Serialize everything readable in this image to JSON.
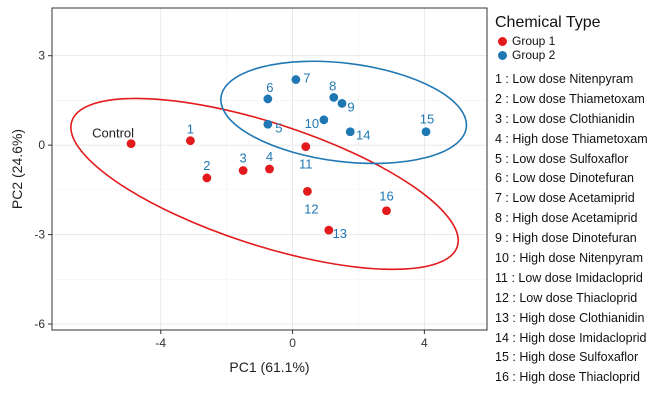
{
  "chart_data": {
    "type": "scatter",
    "xlabel": "PC1 (61.1%)",
    "ylabel": "PC2 (24.6%)",
    "xlim": [
      -7.3,
      5.9
    ],
    "ylim": [
      -6.2,
      4.6
    ],
    "xticks": [
      -4,
      0,
      4
    ],
    "yticks": [
      -6,
      -3,
      0,
      3
    ],
    "xtick_labels": [
      "-4",
      "0",
      "4"
    ],
    "ytick_labels": [
      "-6",
      "-3",
      "0",
      "3"
    ],
    "grid": true,
    "legend_position": "top-right",
    "legend_title": "Chemical Type",
    "series": [
      {
        "name": "Group 1",
        "color": "#e31a1c",
        "points": [
          {
            "label": "Control",
            "x": -4.9,
            "y": 0.05
          },
          {
            "label": "1",
            "x": -3.1,
            "y": 0.15
          },
          {
            "label": "2",
            "x": -2.6,
            "y": -1.1
          },
          {
            "label": "3",
            "x": -1.5,
            "y": -0.85
          },
          {
            "label": "4",
            "x": -0.7,
            "y": -0.8
          },
          {
            "label": "11",
            "x": 0.4,
            "y": -0.05
          },
          {
            "label": "12",
            "x": 0.45,
            "y": -1.55
          },
          {
            "label": "13",
            "x": 1.1,
            "y": -2.85
          },
          {
            "label": "16",
            "x": 2.85,
            "y": -2.2
          }
        ],
        "ellipse": {
          "cx": -0.85,
          "cy": -1.3,
          "rx": 6.15,
          "ry": 2.05,
          "angle_deg": -18
        }
      },
      {
        "name": "Group 2",
        "color": "#1f78b4",
        "points": [
          {
            "label": "5",
            "x": -0.75,
            "y": 0.7
          },
          {
            "label": "6",
            "x": -0.75,
            "y": 1.55
          },
          {
            "label": "7",
            "x": 0.1,
            "y": 2.2
          },
          {
            "label": "8",
            "x": 1.25,
            "y": 1.6
          },
          {
            "label": "9",
            "x": 1.5,
            "y": 1.4
          },
          {
            "label": "10",
            "x": 0.95,
            "y": 0.85
          },
          {
            "label": "14",
            "x": 1.75,
            "y": 0.45
          },
          {
            "label": "15",
            "x": 4.05,
            "y": 0.45
          }
        ],
        "ellipse": {
          "cx": 1.55,
          "cy": 1.1,
          "rx": 3.75,
          "ry": 1.65,
          "angle_deg": -7
        }
      }
    ]
  },
  "compound_list": [
    "1 : Low dose Nitenpyram",
    "2 : Low dose Thiametoxam",
    "3 : Low dose Clothianidin",
    "4 : High dose Thiametoxam",
    "5 : Low dose Sulfoxaflor",
    "6 : Low dose Dinotefuran",
    "7 : Low dose Acetamiprid",
    "8 : High dose Acetamiprid",
    "9 : High dose Dinotefuran",
    "10 : High dose Nitenpyram",
    "11 : Low dose Imidacloprid",
    "12 : Low dose Thiacloprid",
    "13 : High dose Clothianidin",
    "14 : High dose Imidacloprid",
    "15 : High dose Sulfoxaflor",
    "16 : High dose Thiacloprid"
  ]
}
